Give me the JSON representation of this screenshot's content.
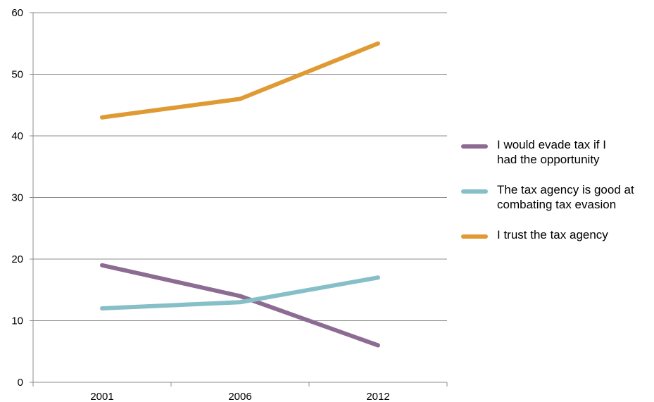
{
  "chart_data": {
    "type": "line",
    "categories": [
      "2001",
      "2006",
      "2012"
    ],
    "ylim": [
      0,
      60
    ],
    "yticks": [
      "0",
      "10",
      "20",
      "30",
      "40",
      "50",
      "60"
    ],
    "grid": "horizontal",
    "legend_position": "right",
    "series": [
      {
        "name": "I would evade tax  if I\nhad the opportunity",
        "color": "#8c6c92",
        "values": [
          19,
          14,
          6
        ]
      },
      {
        "name": "The tax agency is good at\ncombating tax evasion",
        "color": "#86bfc7",
        "values": [
          12,
          13,
          17
        ]
      },
      {
        "name": "I trust the tax agency",
        "color": "#e09a33",
        "values": [
          43,
          46,
          55
        ]
      }
    ]
  }
}
